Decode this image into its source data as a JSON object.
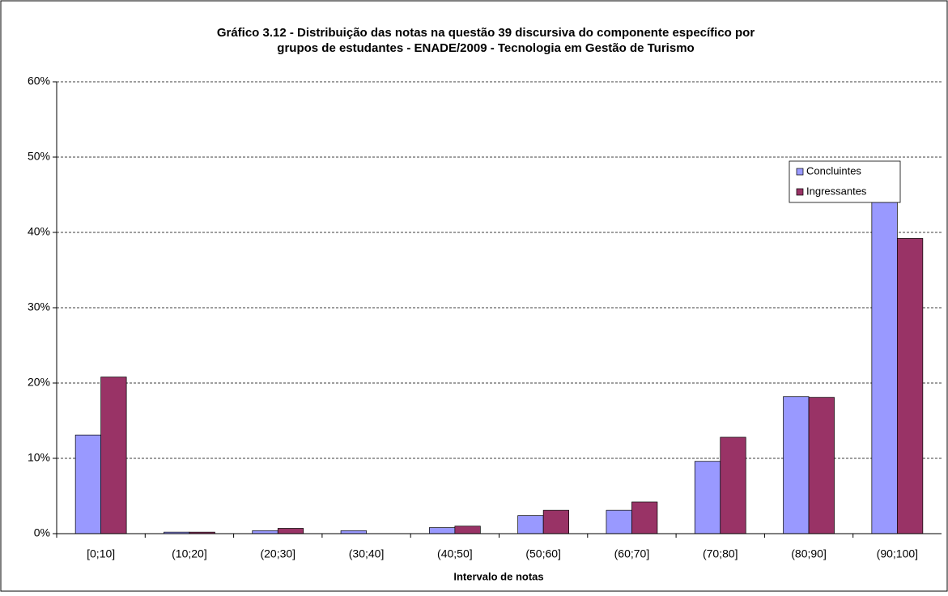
{
  "chart_data": {
    "type": "bar",
    "title": [
      "Gráfico 3.12 - Distribuição das notas na questão 39 discursiva do componente específico por",
      "grupos de estudantes - ENADE/2009 - Tecnologia em Gestão de Turismo"
    ],
    "x_label": "Intervalo de notas",
    "categories": [
      "[0;10]",
      "(10;20]",
      "(20;30]",
      "(30;40]",
      "(40;50]",
      "(50;60]",
      "(60;70]",
      "(70;80]",
      "(80;90]",
      "(90;100]"
    ],
    "series": [
      {
        "name": "Concluintes",
        "color": "#9999ff",
        "values": [
          13.1,
          0.2,
          0.4,
          0.4,
          0.8,
          2.4,
          3.1,
          9.6,
          18.2,
          48.7
        ]
      },
      {
        "name": "Ingressantes",
        "color": "#993366",
        "values": [
          20.8,
          0.2,
          0.7,
          0,
          1.0,
          3.1,
          4.2,
          12.8,
          18.1,
          39.2
        ]
      }
    ],
    "ylim": [
      0,
      60
    ],
    "yticks": [
      {
        "value": 0,
        "label": "0%"
      },
      {
        "value": 10,
        "label": "10%"
      },
      {
        "value": 20,
        "label": "20%"
      },
      {
        "value": 30,
        "label": "30%"
      },
      {
        "value": 40,
        "label": "40%"
      },
      {
        "value": 50,
        "label": "50%"
      },
      {
        "value": 60,
        "label": "60%"
      }
    ],
    "grid": true
  }
}
